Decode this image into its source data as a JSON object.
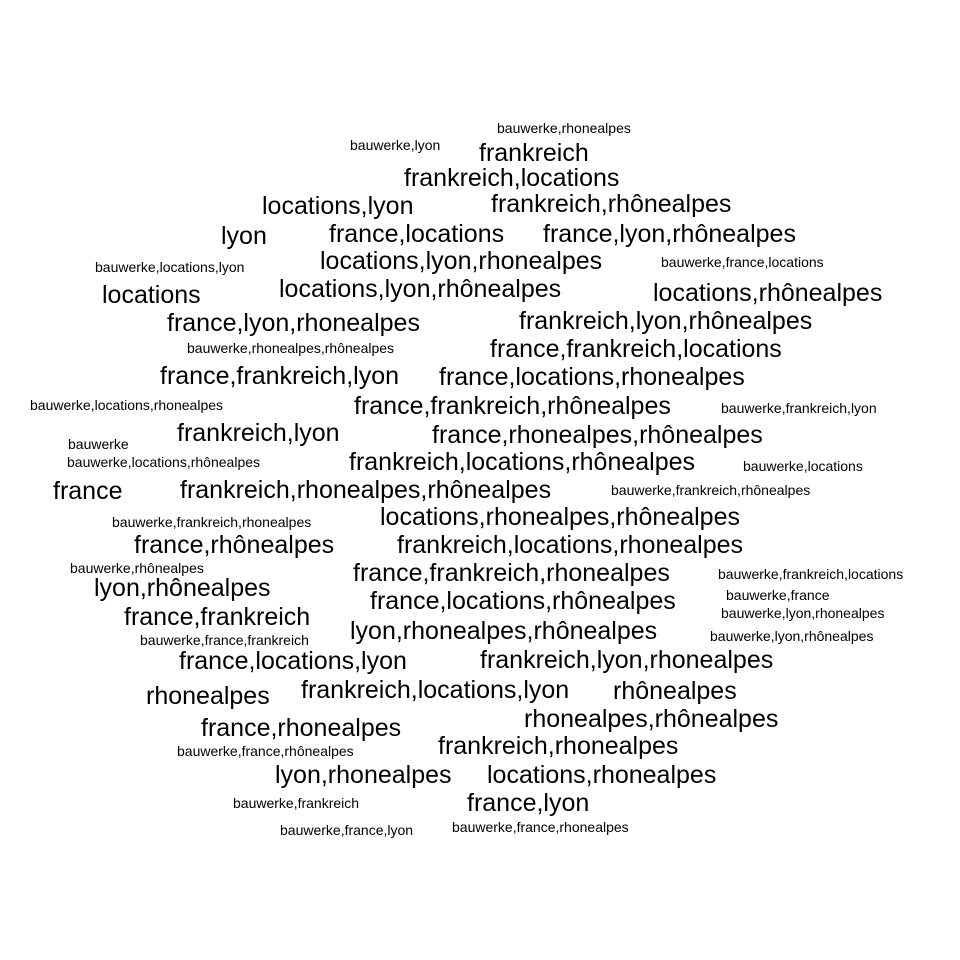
{
  "cloud": {
    "color": "#000000",
    "background": "#ffffff",
    "words": [
      "bauwerke,rhonealpes",
      "bauwerke,lyon",
      "frankreich",
      "frankreich,locations",
      "locations,lyon",
      "frankreich,rhônealpes",
      "lyon",
      "france,locations",
      "france,lyon,rhônealpes",
      "bauwerke,locations,lyon",
      "locations,lyon,rhonealpes",
      "bauwerke,france,locations",
      "locations",
      "locations,lyon,rhônealpes",
      "locations,rhônealpes",
      "france,lyon,rhonealpes",
      "frankreich,lyon,rhônealpes",
      "bauwerke,rhonealpes,rhônealpes",
      "france,frankreich,locations",
      "france,frankreich,lyon",
      "france,locations,rhonealpes",
      "bauwerke,locations,rhonealpes",
      "france,frankreich,rhônealpes",
      "bauwerke,frankreich,lyon",
      "frankreich,lyon",
      "france,rhonealpes,rhônealpes",
      "bauwerke",
      "bauwerke,locations,rhônealpes",
      "frankreich,locations,rhônealpes",
      "bauwerke,locations",
      "france",
      "frankreich,rhonealpes,rhônealpes",
      "bauwerke,frankreich,rhônealpes",
      "bauwerke,frankreich,rhonealpes",
      "locations,rhonealpes,rhônealpes",
      "france,rhônealpes",
      "frankreich,locations,rhonealpes",
      "bauwerke,rhônealpes",
      "france,frankreich,rhonealpes",
      "bauwerke,frankreich,locations",
      "lyon,rhônealpes",
      "bauwerke,france",
      "france,locations,rhônealpes",
      "france,frankreich",
      "bauwerke,lyon,rhonealpes",
      "lyon,rhonealpes,rhônealpes",
      "bauwerke,france,frankreich",
      "bauwerke,lyon,rhônealpes",
      "france,locations,lyon",
      "frankreich,lyon,rhonealpes",
      "rhonealpes",
      "frankreich,locations,lyon",
      "rhônealpes",
      "france,rhonealpes",
      "rhonealpes,rhônealpes",
      "bauwerke,france,rhônealpes",
      "frankreich,rhonealpes",
      "lyon,rhonealpes",
      "locations,rhonealpes",
      "bauwerke,frankreich",
      "france,lyon",
      "bauwerke,france,lyon",
      "bauwerke,france,rhonealpes"
    ]
  }
}
